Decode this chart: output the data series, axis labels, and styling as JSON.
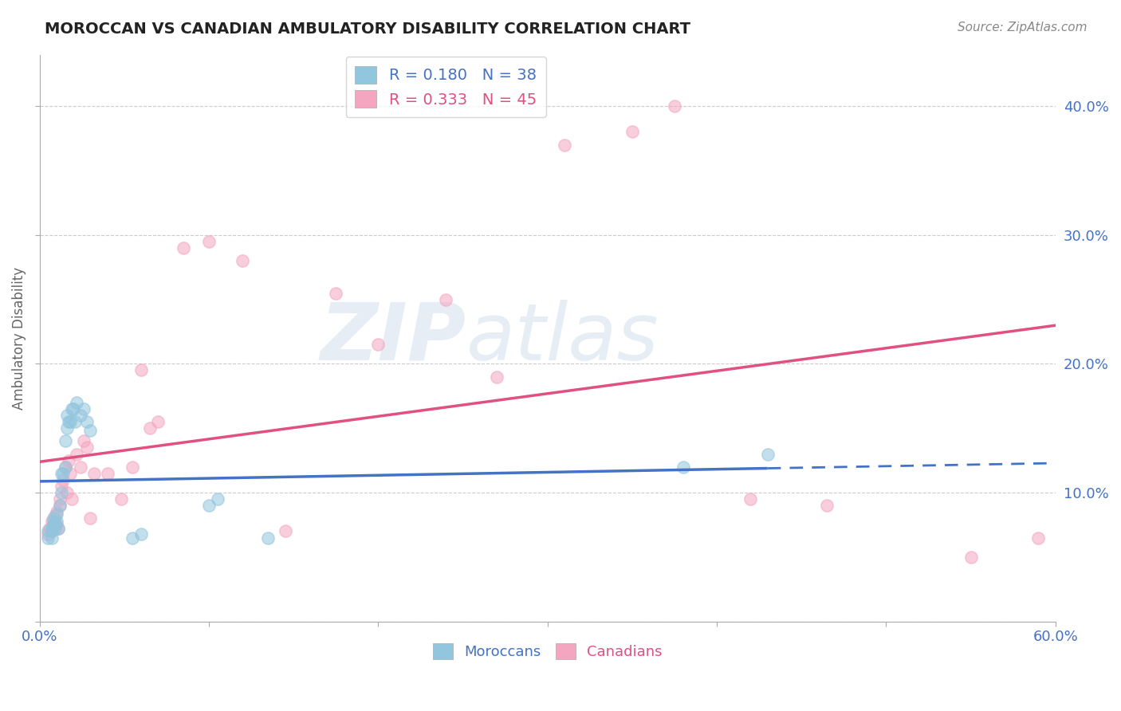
{
  "title": "MOROCCAN VS CANADIAN AMBULATORY DISABILITY CORRELATION CHART",
  "source_text": "Source: ZipAtlas.com",
  "ylabel": "Ambulatory Disability",
  "xlim": [
    0.0,
    0.6
  ],
  "ylim": [
    0.0,
    0.44
  ],
  "moroccan_R": 0.18,
  "moroccan_N": 38,
  "canadian_R": 0.333,
  "canadian_N": 45,
  "moroccan_color": "#92c5de",
  "canadian_color": "#f4a6c0",
  "moroccan_line_color": "#4472c4",
  "canadian_line_color": "#e05080",
  "moroccan_line_solid_end": 0.43,
  "watermark_zip": "ZIP",
  "watermark_atlas": "atlas",
  "moroccan_x": [
    0.005,
    0.005,
    0.007,
    0.007,
    0.007,
    0.008,
    0.008,
    0.008,
    0.009,
    0.009,
    0.01,
    0.01,
    0.011,
    0.012,
    0.013,
    0.013,
    0.014,
    0.015,
    0.015,
    0.016,
    0.016,
    0.017,
    0.018,
    0.019,
    0.02,
    0.021,
    0.022,
    0.024,
    0.026,
    0.028,
    0.03,
    0.055,
    0.06,
    0.1,
    0.105,
    0.135,
    0.38,
    0.43
  ],
  "moroccan_y": [
    0.065,
    0.07,
    0.065,
    0.07,
    0.072,
    0.075,
    0.078,
    0.08,
    0.072,
    0.076,
    0.078,
    0.083,
    0.072,
    0.09,
    0.1,
    0.115,
    0.115,
    0.12,
    0.14,
    0.15,
    0.16,
    0.155,
    0.155,
    0.165,
    0.165,
    0.155,
    0.17,
    0.16,
    0.165,
    0.155,
    0.148,
    0.065,
    0.068,
    0.09,
    0.095,
    0.065,
    0.12,
    0.13
  ],
  "canadian_x": [
    0.005,
    0.006,
    0.007,
    0.007,
    0.008,
    0.009,
    0.01,
    0.01,
    0.011,
    0.012,
    0.012,
    0.013,
    0.014,
    0.015,
    0.016,
    0.017,
    0.018,
    0.019,
    0.022,
    0.024,
    0.026,
    0.028,
    0.03,
    0.032,
    0.04,
    0.048,
    0.055,
    0.06,
    0.065,
    0.07,
    0.085,
    0.1,
    0.12,
    0.145,
    0.175,
    0.2,
    0.24,
    0.27,
    0.31,
    0.35,
    0.375,
    0.42,
    0.465,
    0.55,
    0.59
  ],
  "canadian_y": [
    0.068,
    0.072,
    0.07,
    0.078,
    0.075,
    0.082,
    0.075,
    0.085,
    0.072,
    0.09,
    0.095,
    0.105,
    0.11,
    0.12,
    0.1,
    0.125,
    0.115,
    0.095,
    0.13,
    0.12,
    0.14,
    0.135,
    0.08,
    0.115,
    0.115,
    0.095,
    0.12,
    0.195,
    0.15,
    0.155,
    0.29,
    0.295,
    0.28,
    0.07,
    0.255,
    0.215,
    0.25,
    0.19,
    0.37,
    0.38,
    0.4,
    0.095,
    0.09,
    0.05,
    0.065
  ]
}
